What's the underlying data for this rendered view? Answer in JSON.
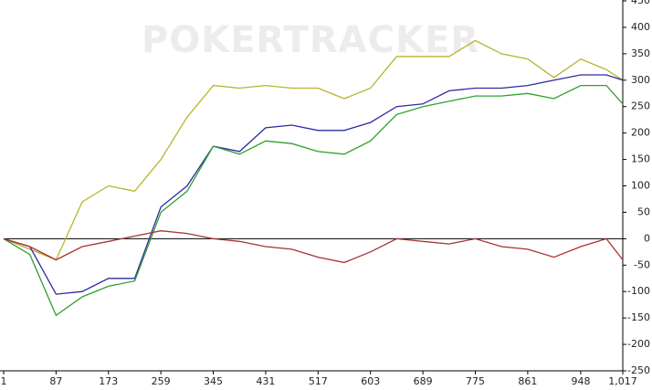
{
  "chart_data": {
    "type": "line",
    "watermark": "POKERTRACKER",
    "x": [
      1,
      44,
      87,
      130,
      173,
      216,
      259,
      302,
      345,
      388,
      431,
      474,
      517,
      560,
      603,
      646,
      689,
      732,
      775,
      818,
      861,
      904,
      948,
      990,
      1017
    ],
    "series": [
      {
        "color": "#b5b52e",
        "values": [
          0,
          -20,
          -40,
          70,
          100,
          90,
          150,
          230,
          290,
          285,
          290,
          285,
          285,
          265,
          285,
          345,
          345,
          345,
          375,
          350,
          340,
          305,
          340,
          320,
          300
        ]
      },
      {
        "color": "#2b2ba6",
        "values": [
          0,
          -15,
          -105,
          -100,
          -75,
          -75,
          60,
          100,
          175,
          165,
          210,
          215,
          205,
          205,
          220,
          250,
          255,
          280,
          285,
          285,
          290,
          300,
          310,
          310,
          300
        ]
      },
      {
        "color": "#2ea02e",
        "values": [
          0,
          -30,
          -145,
          -110,
          -90,
          -80,
          50,
          90,
          175,
          160,
          185,
          180,
          165,
          160,
          185,
          235,
          250,
          260,
          270,
          270,
          275,
          265,
          290,
          290,
          255
        ]
      },
      {
        "color": "#a83232",
        "values": [
          0,
          -15,
          -40,
          -15,
          -5,
          5,
          15,
          10,
          0,
          -5,
          -15,
          -20,
          -35,
          -45,
          -25,
          0,
          -5,
          -10,
          0,
          -15,
          -20,
          -35,
          -15,
          0,
          -40
        ]
      }
    ],
    "xlim": [
      1,
      1017
    ],
    "xticks": [
      1,
      87,
      173,
      259,
      345,
      431,
      517,
      603,
      689,
      775,
      861,
      948,
      {
        "value": 1017,
        "label": "1,017"
      }
    ],
    "ylim": [
      -250,
      450
    ],
    "yticks": [
      -250,
      -200,
      -150,
      -100,
      -50,
      0,
      50,
      100,
      150,
      200,
      250,
      300,
      350,
      400,
      450
    ],
    "zero_line": true
  }
}
